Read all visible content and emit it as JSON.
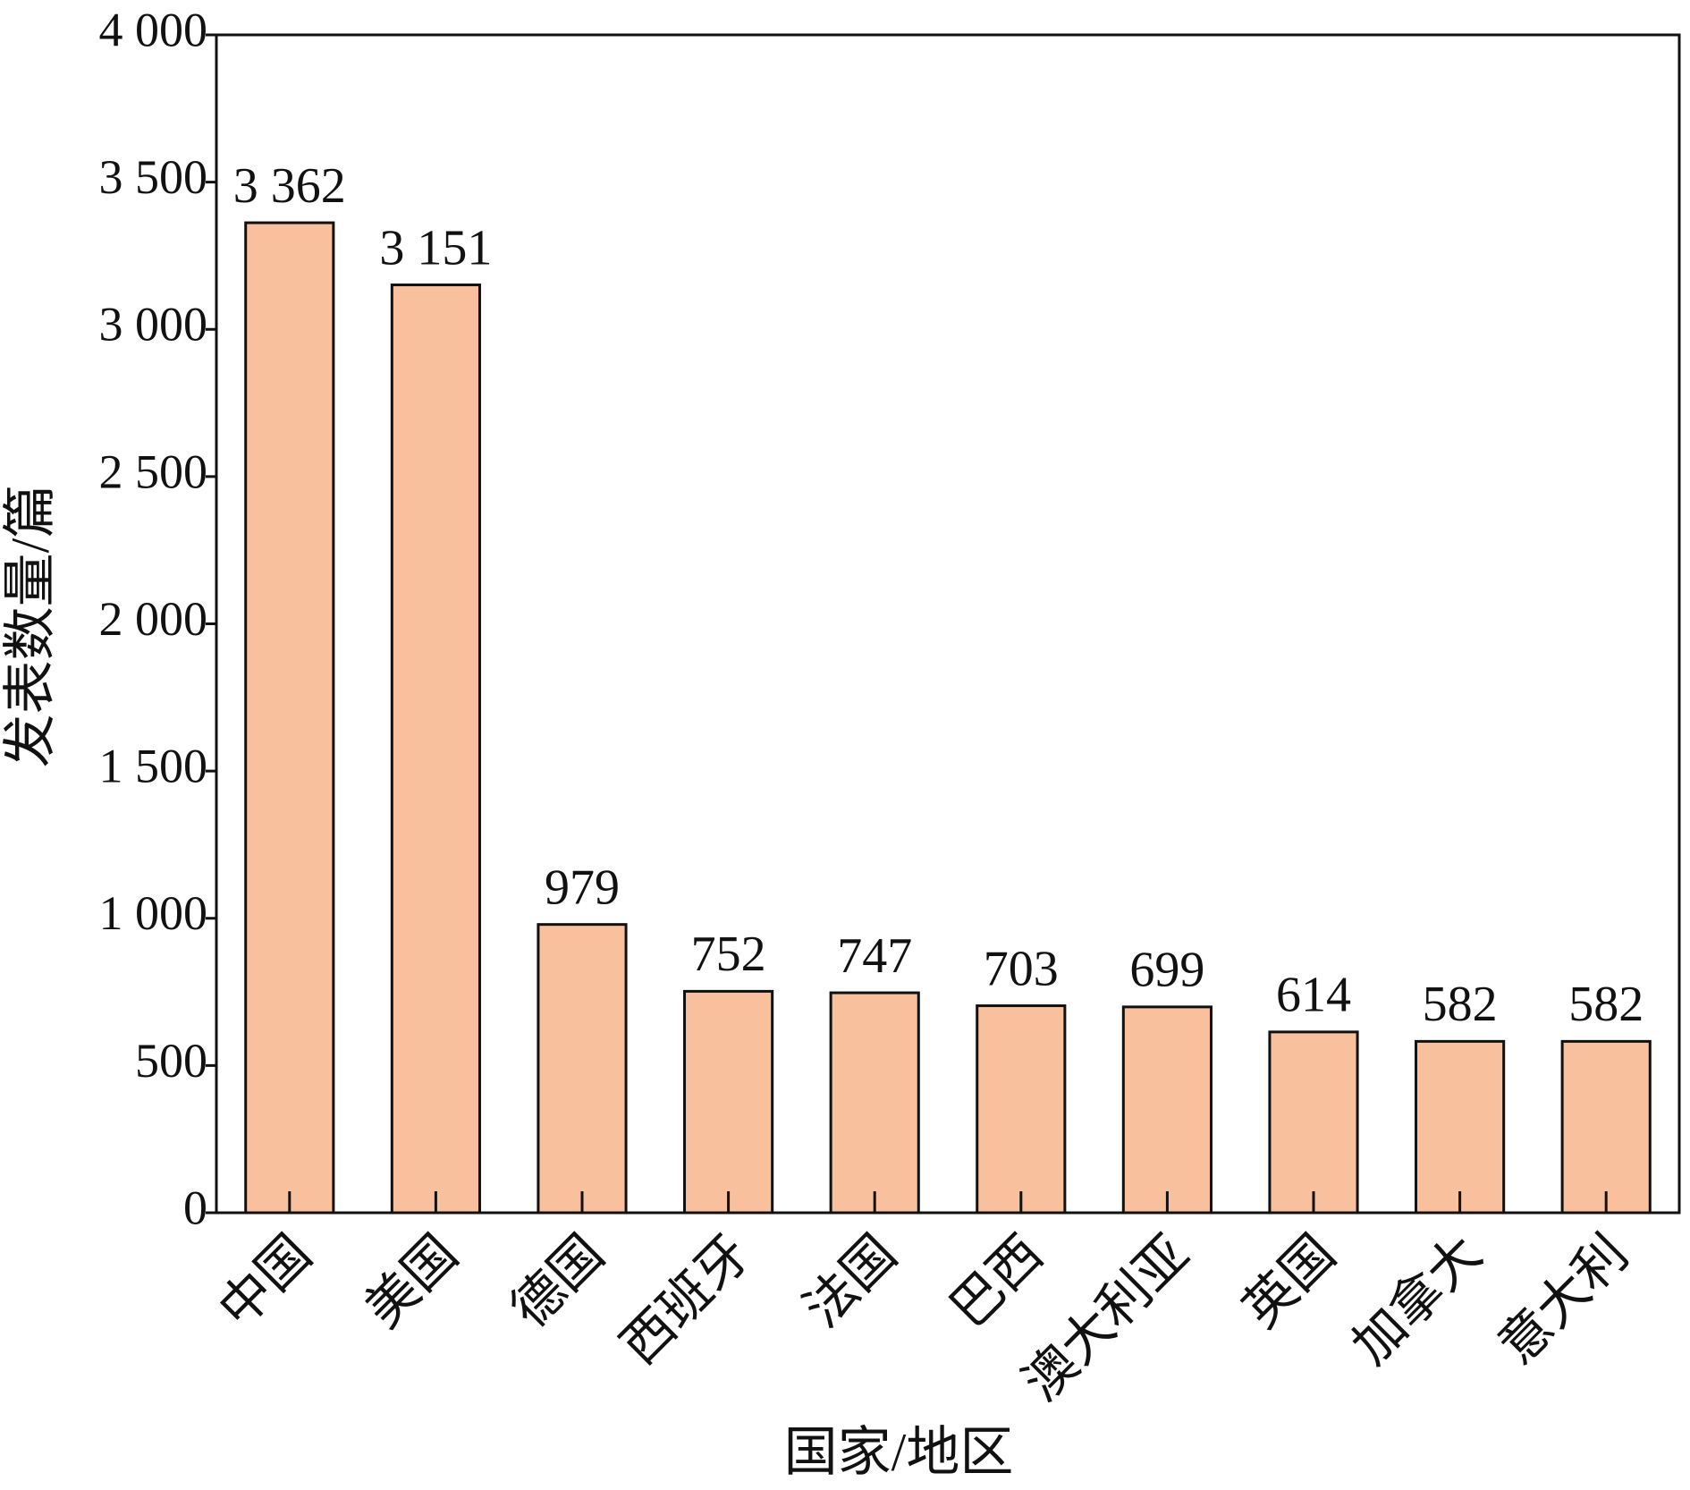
{
  "chart_data": {
    "type": "bar",
    "x_label": "国家/地区",
    "y_label": "发表数量/篇",
    "categories": [
      "中国",
      "美国",
      "德国",
      "西班牙",
      "法国",
      "巴西",
      "澳大利亚",
      "英国",
      "加拿大",
      "意大利"
    ],
    "values": [
      3362,
      3151,
      979,
      752,
      747,
      703,
      699,
      614,
      582,
      582
    ],
    "value_labels": [
      "3 362",
      "3 151",
      "979",
      "752",
      "747",
      "703",
      "699",
      "614",
      "582",
      "582"
    ],
    "color": "#f8c09c",
    "ylim": [
      0,
      4000
    ],
    "yticks": [
      0,
      500,
      {
        "value": 1000,
        "label": "1 000"
      },
      {
        "value": 1500,
        "label": "1 500"
      },
      {
        "value": 2000,
        "label": "2 000"
      },
      {
        "value": 2500,
        "label": "2 500"
      },
      {
        "value": 3000,
        "label": "3 000"
      },
      {
        "value": 3500,
        "label": "3 500"
      },
      {
        "value": 4000,
        "label": "4 000"
      }
    ],
    "grid": false
  }
}
